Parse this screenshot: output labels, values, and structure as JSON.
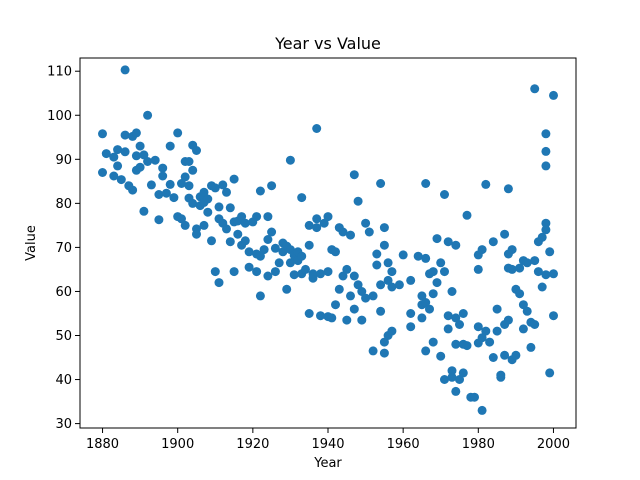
{
  "chart_data": {
    "type": "scatter",
    "title": "Year vs Value",
    "xlabel": "Year",
    "ylabel": "Value",
    "xlim": [
      1874,
      2006
    ],
    "ylim": [
      29,
      113
    ],
    "xticks": [
      1880,
      1900,
      1920,
      1940,
      1960,
      1980,
      2000
    ],
    "yticks": [
      30,
      40,
      50,
      60,
      70,
      80,
      90,
      100,
      110
    ],
    "grid": false,
    "marker_color": "#1f77b4",
    "points": [
      [
        1880,
        95.8
      ],
      [
        1880,
        87.0
      ],
      [
        1881,
        91.3
      ],
      [
        1883,
        90.5
      ],
      [
        1883,
        86.2
      ],
      [
        1884,
        92.2
      ],
      [
        1884,
        88.5
      ],
      [
        1885,
        85.4
      ],
      [
        1886,
        110.3
      ],
      [
        1886,
        95.5
      ],
      [
        1886,
        91.7
      ],
      [
        1887,
        84.0
      ],
      [
        1888,
        95.2
      ],
      [
        1888,
        83.0
      ],
      [
        1889,
        96.0
      ],
      [
        1889,
        90.8
      ],
      [
        1889,
        87.5
      ],
      [
        1890,
        93.0
      ],
      [
        1890,
        88.2
      ],
      [
        1891,
        91.0
      ],
      [
        1891,
        78.2
      ],
      [
        1892,
        100.0
      ],
      [
        1892,
        89.5
      ],
      [
        1893,
        84.2
      ],
      [
        1894,
        89.8
      ],
      [
        1895,
        82.0
      ],
      [
        1895,
        76.3
      ],
      [
        1896,
        88.0
      ],
      [
        1896,
        86.2
      ],
      [
        1897,
        82.3
      ],
      [
        1898,
        93.0
      ],
      [
        1898,
        84.3
      ],
      [
        1899,
        81.3
      ],
      [
        1900,
        96.0
      ],
      [
        1900,
        77.0
      ],
      [
        1901,
        76.5
      ],
      [
        1901,
        84.5
      ],
      [
        1902,
        89.5
      ],
      [
        1902,
        86.0
      ],
      [
        1902,
        75.0
      ],
      [
        1903,
        89.5
      ],
      [
        1903,
        84.0
      ],
      [
        1903,
        81.2
      ],
      [
        1904,
        93.2
      ],
      [
        1904,
        87.5
      ],
      [
        1904,
        80.0
      ],
      [
        1905,
        92.0
      ],
      [
        1905,
        74.2
      ],
      [
        1905,
        73.0
      ],
      [
        1906,
        81.5
      ],
      [
        1906,
        79.5
      ],
      [
        1907,
        82.5
      ],
      [
        1907,
        80.2
      ],
      [
        1907,
        75.0
      ],
      [
        1908,
        81.0
      ],
      [
        1908,
        78.0
      ],
      [
        1909,
        84.0
      ],
      [
        1909,
        71.5
      ],
      [
        1910,
        64.5
      ],
      [
        1910,
        83.5
      ],
      [
        1911,
        62.0
      ],
      [
        1911,
        76.5
      ],
      [
        1911,
        79.2
      ],
      [
        1912,
        84.2
      ],
      [
        1912,
        75.5
      ],
      [
        1913,
        82.5
      ],
      [
        1913,
        74.2
      ],
      [
        1914,
        71.3
      ],
      [
        1914,
        79.0
      ],
      [
        1915,
        85.5
      ],
      [
        1915,
        75.8
      ],
      [
        1915,
        64.5
      ],
      [
        1916,
        73.0
      ],
      [
        1916,
        76.0
      ],
      [
        1917,
        77.0
      ],
      [
        1917,
        70.5
      ],
      [
        1918,
        71.5
      ],
      [
        1918,
        75.5
      ],
      [
        1919,
        65.5
      ],
      [
        1919,
        69.0
      ],
      [
        1920,
        75.8
      ],
      [
        1921,
        77.0
      ],
      [
        1921,
        64.5
      ],
      [
        1921,
        68.5
      ],
      [
        1922,
        82.8
      ],
      [
        1922,
        59.0
      ],
      [
        1922,
        68.0
      ],
      [
        1923,
        69.5
      ],
      [
        1924,
        77.0
      ],
      [
        1924,
        71.8
      ],
      [
        1924,
        63.5
      ],
      [
        1925,
        84.0
      ],
      [
        1925,
        73.5
      ],
      [
        1926,
        69.8
      ],
      [
        1926,
        64.5
      ],
      [
        1927,
        66.5
      ],
      [
        1928,
        71.0
      ],
      [
        1928,
        69.0
      ],
      [
        1929,
        70.3
      ],
      [
        1929,
        60.5
      ],
      [
        1930,
        89.8
      ],
      [
        1930,
        69.5
      ],
      [
        1930,
        66.5
      ],
      [
        1931,
        68.2
      ],
      [
        1931,
        63.8
      ],
      [
        1932,
        69.0
      ],
      [
        1932,
        67.0
      ],
      [
        1933,
        81.3
      ],
      [
        1933,
        68.0
      ],
      [
        1933,
        64.0
      ],
      [
        1934,
        65.0
      ],
      [
        1935,
        75.0
      ],
      [
        1935,
        70.5
      ],
      [
        1935,
        55.0
      ],
      [
        1936,
        63.0
      ],
      [
        1936,
        64.0
      ],
      [
        1937,
        97.0
      ],
      [
        1937,
        76.5
      ],
      [
        1937,
        74.5
      ],
      [
        1938,
        54.5
      ],
      [
        1938,
        64.0
      ],
      [
        1939,
        75.5
      ],
      [
        1940,
        77.0
      ],
      [
        1940,
        64.5
      ],
      [
        1940,
        54.3
      ],
      [
        1941,
        69.5
      ],
      [
        1941,
        54.0
      ],
      [
        1942,
        69.0
      ],
      [
        1942,
        57.0
      ],
      [
        1943,
        74.5
      ],
      [
        1943,
        60.5
      ],
      [
        1944,
        73.5
      ],
      [
        1944,
        63.5
      ],
      [
        1945,
        65.0
      ],
      [
        1945,
        53.5
      ],
      [
        1946,
        72.8
      ],
      [
        1946,
        59.0
      ],
      [
        1947,
        86.5
      ],
      [
        1947,
        63.5
      ],
      [
        1947,
        56.0
      ],
      [
        1948,
        80.5
      ],
      [
        1948,
        61.5
      ],
      [
        1949,
        60.0
      ],
      [
        1949,
        53.5
      ],
      [
        1950,
        75.5
      ],
      [
        1950,
        58.5
      ],
      [
        1951,
        73.5
      ],
      [
        1952,
        46.5
      ],
      [
        1952,
        59.0
      ],
      [
        1953,
        68.5
      ],
      [
        1953,
        66.0
      ],
      [
        1954,
        84.5
      ],
      [
        1954,
        61.5
      ],
      [
        1954,
        55.5
      ],
      [
        1955,
        74.5
      ],
      [
        1955,
        70.5
      ],
      [
        1955,
        48.5
      ],
      [
        1955,
        46.0
      ],
      [
        1956,
        66.5
      ],
      [
        1956,
        62.5
      ],
      [
        1956,
        50.0
      ],
      [
        1957,
        64.5
      ],
      [
        1957,
        61.0
      ],
      [
        1957,
        51.0
      ],
      [
        1959,
        61.5
      ],
      [
        1960,
        68.3
      ],
      [
        1962,
        62.5
      ],
      [
        1962,
        55.0
      ],
      [
        1962,
        52.0
      ],
      [
        1964,
        68.0
      ],
      [
        1965,
        59.0
      ],
      [
        1965,
        57.0
      ],
      [
        1965,
        54.0
      ],
      [
        1966,
        84.5
      ],
      [
        1966,
        67.5
      ],
      [
        1966,
        57.5
      ],
      [
        1966,
        46.5
      ],
      [
        1967,
        64.0
      ],
      [
        1967,
        56.0
      ],
      [
        1968,
        64.5
      ],
      [
        1968,
        59.5
      ],
      [
        1968,
        48.5
      ],
      [
        1969,
        72.0
      ],
      [
        1969,
        62.0
      ],
      [
        1970,
        66.5
      ],
      [
        1970,
        45.3
      ],
      [
        1971,
        82.0
      ],
      [
        1971,
        64.5
      ],
      [
        1971,
        40.0
      ],
      [
        1972,
        71.3
      ],
      [
        1972,
        54.5
      ],
      [
        1972,
        51.5
      ],
      [
        1973,
        60.0
      ],
      [
        1973,
        42.0
      ],
      [
        1973,
        40.5
      ],
      [
        1974,
        70.5
      ],
      [
        1974,
        54.0
      ],
      [
        1974,
        48.0
      ],
      [
        1974,
        37.3
      ],
      [
        1975,
        52.5
      ],
      [
        1975,
        40.0
      ],
      [
        1976,
        55.0
      ],
      [
        1976,
        48.0
      ],
      [
        1976,
        41.5
      ],
      [
        1977,
        77.3
      ],
      [
        1977,
        47.7
      ],
      [
        1978,
        36.0
      ],
      [
        1979,
        36.0
      ],
      [
        1980,
        68.3
      ],
      [
        1980,
        65.0
      ],
      [
        1980,
        52.0
      ],
      [
        1980,
        48.3
      ],
      [
        1981,
        69.5
      ],
      [
        1981,
        49.5
      ],
      [
        1981,
        33.0
      ],
      [
        1982,
        84.3
      ],
      [
        1982,
        51.0
      ],
      [
        1983,
        48.5
      ],
      [
        1984,
        71.3
      ],
      [
        1984,
        45.0
      ],
      [
        1985,
        56.0
      ],
      [
        1985,
        51.0
      ],
      [
        1986,
        41.0
      ],
      [
        1986,
        40.5
      ],
      [
        1987,
        73.0
      ],
      [
        1987,
        52.5
      ],
      [
        1987,
        45.5
      ],
      [
        1988,
        83.3
      ],
      [
        1988,
        68.5
      ],
      [
        1988,
        65.3
      ],
      [
        1988,
        53.5
      ],
      [
        1989,
        69.5
      ],
      [
        1989,
        65.0
      ],
      [
        1989,
        44.5
      ],
      [
        1990,
        60.5
      ],
      [
        1990,
        45.5
      ],
      [
        1991,
        65.3
      ],
      [
        1991,
        59.5
      ],
      [
        1992,
        67.0
      ],
      [
        1992,
        57.0
      ],
      [
        1992,
        51.5
      ],
      [
        1993,
        66.5
      ],
      [
        1993,
        55.5
      ],
      [
        1994,
        47.3
      ],
      [
        1994,
        53.0
      ],
      [
        1995,
        106.0
      ],
      [
        1995,
        67.0
      ],
      [
        1995,
        52.5
      ],
      [
        1996,
        71.3
      ],
      [
        1996,
        64.5
      ],
      [
        1997,
        72.3
      ],
      [
        1997,
        61.0
      ],
      [
        1998,
        95.8
      ],
      [
        1998,
        91.8
      ],
      [
        1998,
        88.5
      ],
      [
        1998,
        75.5
      ],
      [
        1998,
        74.0
      ],
      [
        1998,
        63.8
      ],
      [
        1999,
        69.0
      ],
      [
        1999,
        41.5
      ],
      [
        2000,
        104.5
      ],
      [
        2000,
        64.0
      ],
      [
        2000,
        54.5
      ]
    ]
  }
}
